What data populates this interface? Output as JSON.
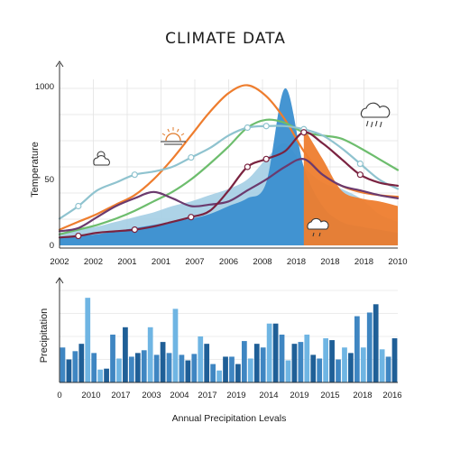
{
  "title": "CLIMATE DATA",
  "colors": {
    "blue_dark": "#1f6fb2",
    "blue_mid": "#3b8fd0",
    "blue_light": "#a9d1e6",
    "teal_light": "#8fc3cf",
    "orange": "#ee7d2e",
    "green": "#6dbd6d",
    "purple": "#6b3a6e",
    "burgundy": "#7a2340",
    "bar_dark": "#1f5f97",
    "bar_mid": "#3f86c2",
    "bar_light": "#6fb5e3"
  },
  "icons": [
    "cloud-sun-icon",
    "sunset-icon",
    "rain-cloud-icon",
    "cloud-drizzle-icon"
  ],
  "chart_data": [
    {
      "type": "area",
      "ylabel": "Temperature",
      "xlabel": "",
      "y_tick_labels": [
        "0",
        "50",
        "1000"
      ],
      "ylim": [
        0,
        100
      ],
      "x_tick_labels": [
        "2002",
        "2002",
        "2001",
        "2001",
        "2007",
        "2006",
        "2008",
        "2018",
        "2018",
        "2018",
        "2010"
      ],
      "grid": true,
      "series": [
        {
          "kind": "area",
          "color": "#a9d1e6",
          "values": [
            8,
            10,
            12,
            15,
            18,
            21,
            25,
            28,
            32,
            36,
            42,
            55,
            65,
            50,
            40,
            36,
            30,
            20,
            15
          ]
        },
        {
          "kind": "area",
          "color": "#3b8fd0",
          "values": [
            5,
            6,
            7,
            9,
            11,
            13,
            15,
            17,
            20,
            25,
            30,
            40,
            100,
            50,
            25,
            15,
            12,
            10,
            8
          ]
        },
        {
          "kind": "area",
          "color": "#ee7d2e",
          "values": [
            0,
            0,
            0,
            0,
            0,
            0,
            0,
            0,
            0,
            0,
            0,
            0,
            0,
            75,
            55,
            35,
            30,
            28,
            25
          ]
        },
        {
          "kind": "line",
          "color": "#ee7d2e",
          "values": [
            10,
            15,
            20,
            26,
            32,
            42,
            55,
            70,
            85,
            97,
            102,
            95,
            80,
            60,
            45,
            38,
            34,
            32,
            31
          ]
        },
        {
          "kind": "line",
          "color": "#6dbd6d",
          "values": [
            7,
            10,
            13,
            17,
            22,
            28,
            34,
            42,
            52,
            63,
            75,
            80,
            78,
            72,
            70,
            68,
            62,
            55,
            48
          ]
        },
        {
          "kind": "line",
          "color": "#8fc3cf",
          "markers": true,
          "values": [
            17,
            25,
            35,
            40,
            45,
            47,
            50,
            56,
            62,
            70,
            75,
            76,
            76,
            74,
            70,
            62,
            52,
            42,
            36
          ]
        },
        {
          "kind": "line",
          "color": "#6b3a6e",
          "values": [
            9,
            11,
            18,
            25,
            30,
            34,
            30,
            25,
            26,
            28,
            35,
            42,
            50,
            55,
            45,
            38,
            35,
            32,
            30
          ]
        },
        {
          "kind": "line",
          "color": "#7a2340",
          "markers": true,
          "values": [
            5,
            6,
            8,
            9,
            10,
            12,
            15,
            18,
            22,
            35,
            50,
            55,
            60,
            72,
            65,
            55,
            45,
            40,
            38
          ]
        }
      ]
    },
    {
      "type": "bar",
      "ylabel": "Precipitation",
      "xlabel": "Annual Precipitation Levals",
      "ylim": [
        0,
        100
      ],
      "grid": true,
      "x_tick_labels": [
        "0",
        "2010",
        "2017",
        "2003",
        "2004",
        "2017",
        "2019",
        "2014",
        "2019",
        "2015",
        "2018",
        "2016"
      ],
      "values": [
        38,
        25,
        34,
        42,
        92,
        32,
        14,
        15,
        52,
        26,
        60,
        28,
        32,
        35,
        60,
        30,
        44,
        32,
        80,
        30,
        24,
        31,
        50,
        42,
        20,
        13,
        28,
        28,
        20,
        45,
        26,
        42,
        38,
        64,
        64,
        52,
        24,
        42,
        44,
        52,
        30,
        26,
        48,
        46,
        25,
        38,
        32,
        72,
        38,
        76,
        85,
        36,
        28,
        48
      ],
      "shades": [
        "mid",
        "dark",
        "mid",
        "dark",
        "light",
        "mid",
        "light",
        "dark",
        "mid",
        "light",
        "dark",
        "mid",
        "dark",
        "mid",
        "light",
        "mid",
        "dark",
        "mid",
        "light",
        "mid",
        "dark",
        "mid",
        "light",
        "dark",
        "mid",
        "light",
        "dark",
        "mid",
        "dark",
        "mid",
        "light",
        "dark",
        "mid",
        "light",
        "dark",
        "mid",
        "light",
        "dark",
        "mid",
        "light",
        "dark",
        "mid",
        "light",
        "dark",
        "mid",
        "light",
        "dark",
        "mid",
        "light",
        "mid",
        "dark",
        "light",
        "mid",
        "dark"
      ]
    }
  ]
}
